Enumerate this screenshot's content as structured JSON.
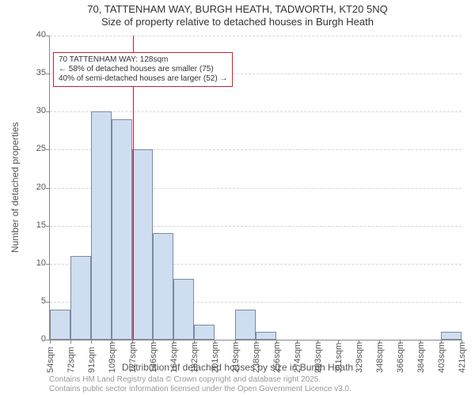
{
  "title_line1": "70, TATTENHAM WAY, BURGH HEATH, TADWORTH, KT20 5NQ",
  "title_line2": "Size of property relative to detached houses in Burgh Heath",
  "y_axis_label": "Number of detached properties",
  "x_axis_label": "Distribution of detached houses by size in Burgh Heath",
  "attribution_line1": "Contains HM Land Registry data © Crown copyright and database right 2025.",
  "attribution_line2": "Contains public sector information licensed under the Open Government Licence v3.0.",
  "chart": {
    "type": "bar-histogram",
    "ylim": [
      0,
      40
    ],
    "ytick_step": 5,
    "xtick_labels": [
      "54sqm",
      "72sqm",
      "91sqm",
      "109sqm",
      "127sqm",
      "146sqm",
      "164sqm",
      "182sqm",
      "201sqm",
      "219sqm",
      "238sqm",
      "256sqm",
      "274sqm",
      "293sqm",
      "311sqm",
      "329sqm",
      "348sqm",
      "366sqm",
      "384sqm",
      "403sqm",
      "421sqm"
    ],
    "bar_values": [
      4,
      11,
      30,
      29,
      25,
      14,
      8,
      2,
      0,
      4,
      1,
      0,
      0,
      0,
      0,
      0,
      0,
      0,
      0,
      1
    ],
    "bar_color": "#cfddf0",
    "bar_border_color": "#7a8aa0",
    "bar_width_ratio": 0.97,
    "background_color": "#ffffff",
    "grid_color": "#d6d6d6",
    "axis_color": "#888888",
    "label_color": "#555555",
    "title_color": "#333333",
    "title_fontsize": 13,
    "axis_label_fontsize": 12,
    "tick_fontsize": 11,
    "reference_line": {
      "x_value_sqm": 128,
      "color": "#d01c2a"
    },
    "annotation": {
      "line1": "70 TATTENHAM WAY: 128sqm",
      "line2": "← 58% of detached houses are smaller (75)",
      "line3": "40% of semi-detached houses are larger (52) →",
      "border_color": "#d01c2a",
      "background": "#ffffff",
      "text_color": "#333333",
      "fontsize": 10,
      "position": "upper-left-of-line"
    }
  }
}
